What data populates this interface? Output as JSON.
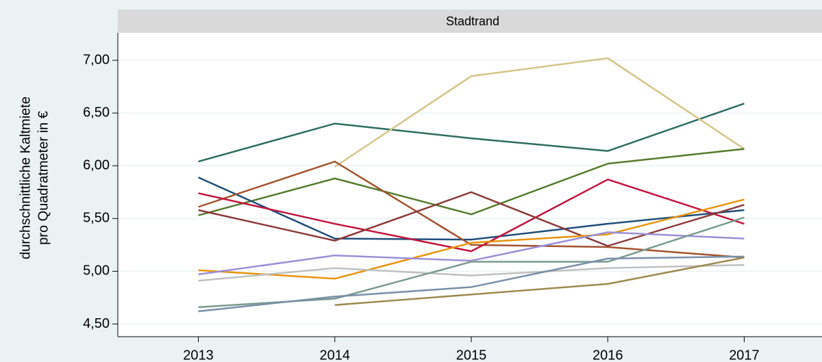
{
  "chart_data": {
    "type": "line",
    "panel_title": "Stadtrand",
    "y_label": [
      "durchschnittliche Kaltmiete",
      "pro Quadratmeter in €"
    ],
    "x": [
      2013,
      2014,
      2015,
      2016,
      2017
    ],
    "xlim": [
      2012.41,
      2017.57
    ],
    "xticks": [
      2013,
      2014,
      2015,
      2016,
      2017
    ],
    "ylim": [
      4.38,
      7.26
    ],
    "yticks": [
      {
        "value": 4.5,
        "label": "4,50"
      },
      {
        "value": 5.0,
        "label": "5,00"
      },
      {
        "value": 5.5,
        "label": "5,50"
      },
      {
        "value": 6.0,
        "label": "6,00"
      },
      {
        "value": 6.5,
        "label": "6,50"
      },
      {
        "value": 7.0,
        "label": "7,00"
      }
    ],
    "grid": true,
    "series": [
      {
        "color": "#2e6b5e",
        "values": [
          6.04,
          6.4,
          6.26,
          6.14,
          6.59
        ]
      },
      {
        "color": "#d4c58a",
        "values": [
          null,
          5.99,
          6.85,
          7.02,
          6.16
        ]
      },
      {
        "color": "#557a2e",
        "values": [
          5.53,
          5.88,
          5.54,
          6.02,
          6.16
        ]
      },
      {
        "color": "#1f4e79",
        "values": [
          5.89,
          5.31,
          5.3,
          5.45,
          5.58
        ]
      },
      {
        "color": "#a0522d",
        "values": [
          5.61,
          6.04,
          5.25,
          5.23,
          5.13
        ]
      },
      {
        "color": "#c0143c",
        "values": [
          5.74,
          5.45,
          5.19,
          5.87,
          5.45
        ]
      },
      {
        "color": "#8b3a3a",
        "values": [
          5.58,
          5.29,
          5.75,
          5.24,
          5.63
        ]
      },
      {
        "color": "#e8930c",
        "values": [
          5.01,
          4.93,
          5.27,
          5.35,
          5.68
        ]
      },
      {
        "color": "#9b8fd6",
        "values": [
          4.97,
          5.15,
          5.1,
          5.37,
          5.31
        ]
      },
      {
        "color": "#c0c0c0",
        "values": [
          4.91,
          5.03,
          4.96,
          5.03,
          5.06
        ]
      },
      {
        "color": "#7a9a8f",
        "values": [
          4.66,
          4.74,
          5.09,
          5.09,
          5.51
        ]
      },
      {
        "color": "#7a8fa8",
        "values": [
          4.62,
          4.76,
          4.85,
          5.12,
          5.14
        ]
      },
      {
        "color": "#9c8a4f",
        "values": [
          null,
          4.68,
          4.78,
          4.88,
          5.13
        ]
      }
    ]
  }
}
